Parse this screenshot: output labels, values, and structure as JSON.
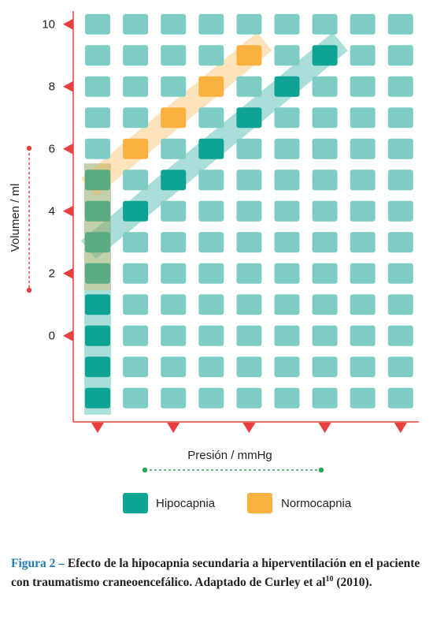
{
  "chart_data": {
    "type": "diagram",
    "y_axis": {
      "title": "Volumen / ml",
      "tick_labels": [
        "0",
        "2",
        "4",
        "6",
        "8",
        "10"
      ],
      "tick_rows": [
        10,
        8,
        6,
        4,
        2,
        0
      ]
    },
    "x_axis": {
      "title": "Presión / mmHg",
      "marker_columns": [
        0,
        2,
        4,
        6,
        8
      ]
    },
    "grid": {
      "columns": 9,
      "rows": 13
    },
    "legend": [
      {
        "label": "Hipocapnia",
        "color": "#0fa394"
      },
      {
        "label": "Normocapnia",
        "color": "#fbb140"
      }
    ],
    "colors": {
      "cell": "#7ecdc4",
      "hypocapnia": "#0fa394",
      "normocapnia": "#fbb140",
      "overlap": "#5aaa84",
      "axis": "#e8403f",
      "dotted": "#2aa35a"
    },
    "hypocapnia_cells": [
      [
        0,
        12
      ],
      [
        0,
        11
      ],
      [
        0,
        10
      ],
      [
        0,
        9
      ],
      [
        1,
        6
      ],
      [
        2,
        5
      ],
      [
        3,
        4
      ],
      [
        4,
        3
      ],
      [
        5,
        2
      ],
      [
        6,
        1
      ]
    ],
    "normocapnia_cells": [
      [
        1,
        4
      ],
      [
        2,
        3
      ],
      [
        3,
        2
      ],
      [
        4,
        1
      ]
    ],
    "overlap_cells": [
      [
        0,
        5
      ],
      [
        0,
        6
      ],
      [
        0,
        7
      ],
      [
        0,
        8
      ]
    ]
  },
  "caption": {
    "label": "Figura 2 –",
    "text": " Efecto de la hipocapnia secundaria a hiperventilación en el paciente con traumatismo craneoencefálico. Adaptado de Curley et al",
    "ref": "10",
    "tail": " (2010)."
  }
}
